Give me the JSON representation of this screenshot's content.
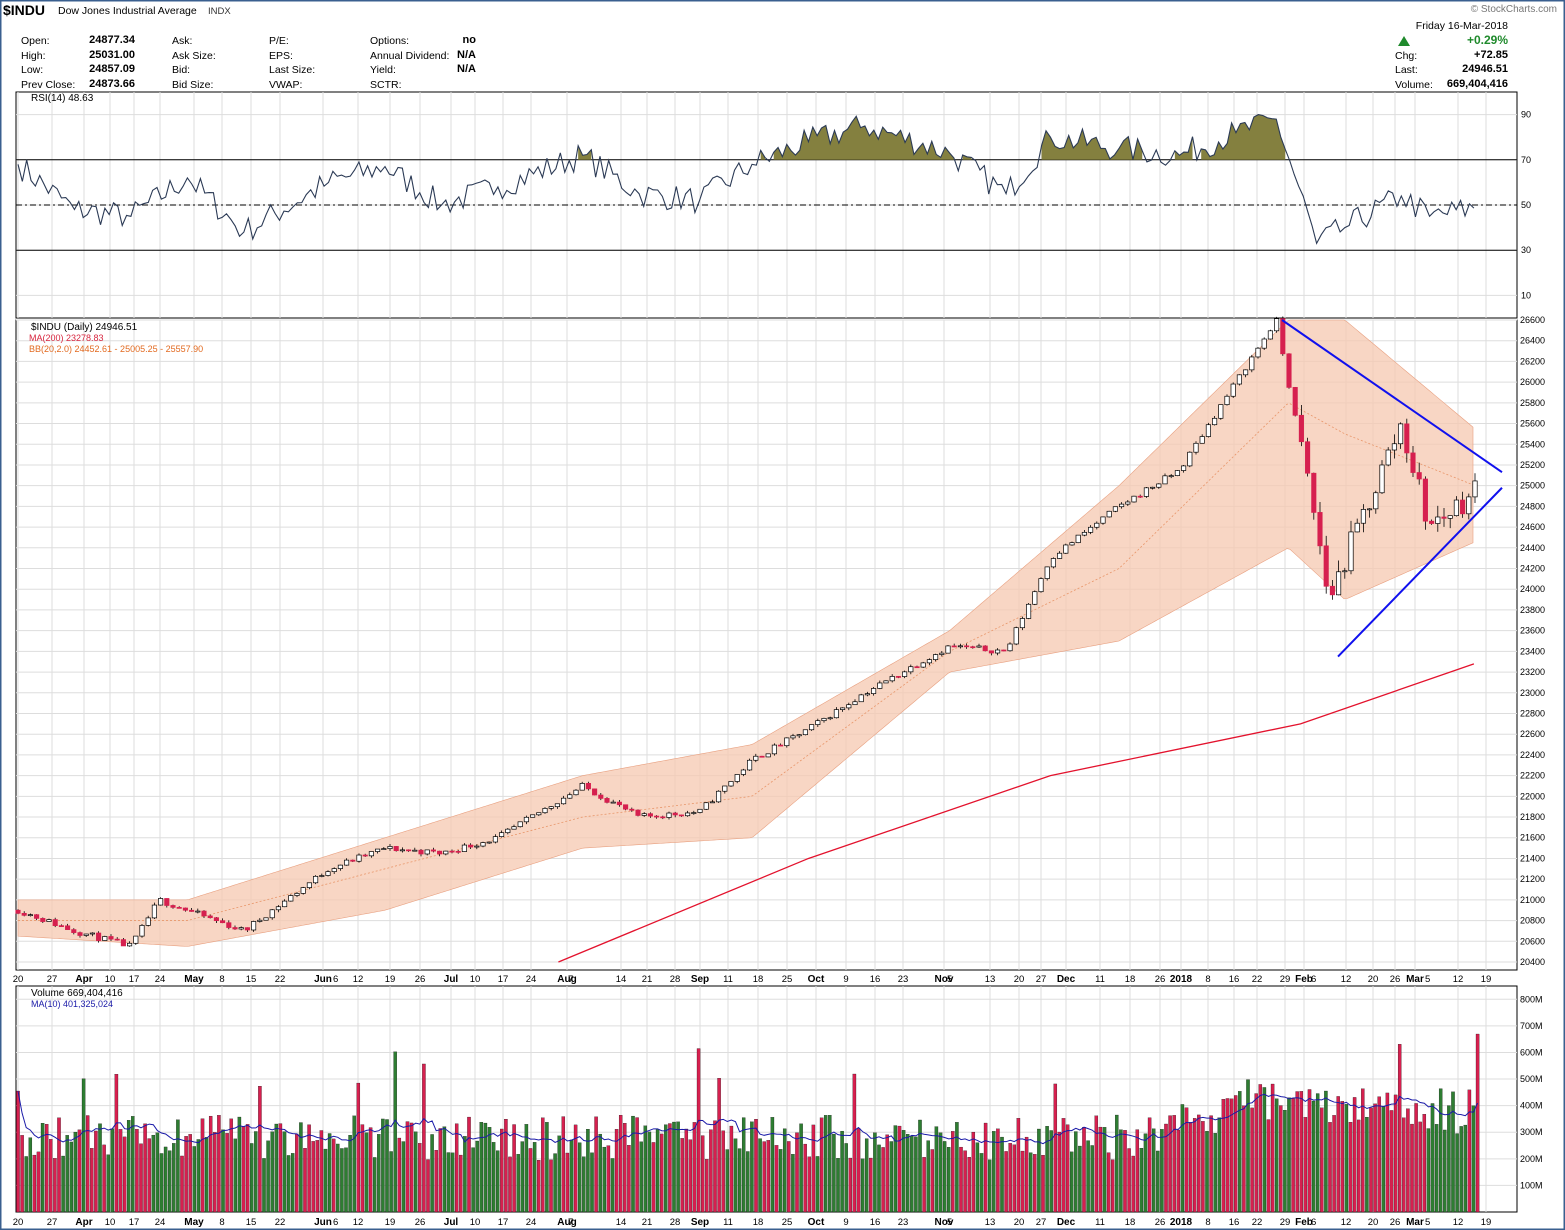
{
  "header": {
    "symbol": "$INDU",
    "name": "Dow Jones Industrial Average",
    "exchange": "INDX",
    "watermark": "© StockCharts.com"
  },
  "quote": {
    "open_label": "Open:",
    "open": "24877.34",
    "high_label": "High:",
    "high": "25031.00",
    "low_label": "Low:",
    "low": "24857.09",
    "prev_label": "Prev Close:",
    "prev": "24873.66",
    "ask_label": "Ask:",
    "ask_size_label": "Ask Size:",
    "bid_label": "Bid:",
    "bid_size_label": "Bid Size:",
    "pe_label": "P/E:",
    "eps_label": "EPS:",
    "last_size_label": "Last Size:",
    "vwap_label": "VWAP:",
    "options_label": "Options:",
    "options": "no",
    "div_label": "Annual Dividend:",
    "div": "N/A",
    "yield_label": "Yield:",
    "yield": "N/A",
    "sctr_label": "SCTR:",
    "date": "Friday  16-Mar-2018",
    "pct_change": "+0.29%",
    "chg_label": "Chg:",
    "chg": "+72.85",
    "last_label": "Last:",
    "last": "24946.51",
    "volume_label": "Volume:",
    "volume": "669,404,416"
  },
  "colors": {
    "up": "#2e7d32",
    "down": "#d6204f",
    "bb_fill": "#f5c8b0",
    "rsi_fill": "#84803f",
    "ma200": "#e3122d",
    "trend": "#1010ee",
    "ma10": "#1a1aa8",
    "grid": "#dddddd"
  },
  "chart_data": [
    {
      "type": "line",
      "title": "RSI(14) 48.63",
      "yticks": [
        90,
        70,
        50,
        30,
        10
      ],
      "ylim": [
        0,
        100
      ],
      "overbought": 70,
      "oversold": 30,
      "midline": 50,
      "x": [
        "2017-03-20",
        "2017-04-03",
        "2017-04-17",
        "2017-05-01",
        "2017-05-15",
        "2017-06-05",
        "2017-06-19",
        "2017-07-03",
        "2017-07-17",
        "2017-08-07",
        "2017-08-21",
        "2017-09-05",
        "2017-09-18",
        "2017-10-02",
        "2017-10-16",
        "2017-11-06",
        "2017-11-20",
        "2017-12-01",
        "2017-12-18",
        "2018-01-02",
        "2018-01-16",
        "2018-01-26",
        "2018-02-05",
        "2018-02-12",
        "2018-02-26",
        "2018-03-05",
        "2018-03-16"
      ],
      "values": [
        68,
        48,
        45,
        62,
        38,
        60,
        67,
        50,
        58,
        72,
        55,
        52,
        68,
        78,
        85,
        73,
        55,
        80,
        75,
        72,
        82,
        88,
        33,
        40,
        54,
        45,
        48.63
      ]
    },
    {
      "type": "line",
      "title": "$INDU (Daily) 24946.51",
      "ylim": [
        20400,
        26600
      ],
      "yticks": [
        26600,
        26400,
        26200,
        26000,
        25800,
        25600,
        25400,
        25200,
        25000,
        24800,
        24600,
        24400,
        24200,
        24000,
        23800,
        23600,
        23400,
        23200,
        23000,
        22800,
        22600,
        22400,
        22200,
        22000,
        21800,
        21600,
        21400,
        21200,
        21000,
        20800,
        20600,
        20400
      ],
      "x_tick_labels": [
        "20",
        "27",
        "Apr",
        "10",
        "17",
        "24",
        "May",
        "8",
        "15",
        "22",
        "Jun",
        "12",
        "19",
        "26",
        "Jul",
        "10",
        "17",
        "24",
        "Aug",
        "14",
        "21",
        "28",
        "Sep",
        "11",
        "18",
        "25",
        "Oct",
        "9",
        "16",
        "23",
        "Nov",
        "13",
        "20",
        "27",
        "Dec",
        "11",
        "18",
        "26",
        "2018",
        "8",
        "16",
        "22",
        "29",
        "Feb",
        "12",
        "20",
        "26",
        "Mar",
        "12",
        "19"
      ],
      "bold_x_labels": [
        "Apr",
        "May",
        "Jun",
        "Jul",
        "Aug",
        "Sep",
        "Oct",
        "Nov",
        "Dec",
        "2018",
        "Feb",
        "Mar"
      ],
      "extra_x_labels": [
        "6",
        "7",
        "5",
        "6",
        "5"
      ],
      "series": [
        {
          "name": "$INDU (Daily) 24946.51",
          "x": [
            "2017-03-20",
            "2017-04-03",
            "2017-04-17",
            "2017-04-24",
            "2017-05-15",
            "2017-06-05",
            "2017-06-19",
            "2017-07-03",
            "2017-07-17",
            "2017-08-07",
            "2017-08-21",
            "2017-09-05",
            "2017-09-18",
            "2017-10-02",
            "2017-10-16",
            "2017-11-06",
            "2017-11-20",
            "2017-12-01",
            "2017-12-18",
            "2018-01-02",
            "2018-01-16",
            "2018-01-26",
            "2018-02-05",
            "2018-02-08",
            "2018-02-26",
            "2018-03-05",
            "2018-03-16"
          ],
          "values": [
            20900,
            20700,
            20550,
            21000,
            20700,
            21300,
            21500,
            21450,
            21600,
            22100,
            21800,
            21850,
            22350,
            22650,
            23000,
            23450,
            23400,
            24300,
            24800,
            25150,
            26000,
            26600,
            24600,
            23900,
            25600,
            24600,
            24946.51
          ]
        },
        {
          "name": "MA(200) 23278.83",
          "x": [
            "2017-08-01",
            "2017-10-02",
            "2017-12-01",
            "2018-02-01",
            "2018-03-16"
          ],
          "values": [
            20400,
            21400,
            22200,
            22700,
            23278.83
          ]
        },
        {
          "name": "BB(20,2.0) 24452.61 - 25005.25 - 25557.90",
          "x": [
            "2017-03-20",
            "2017-05-01",
            "2017-06-19",
            "2017-08-07",
            "2017-09-18",
            "2017-11-06",
            "2017-12-18",
            "2018-01-29",
            "2018-02-12",
            "2018-03-16"
          ],
          "upper": [
            21000,
            21000,
            21600,
            22200,
            22500,
            23600,
            25000,
            26600,
            26600,
            25557.9
          ],
          "middle": [
            20800,
            20800,
            21300,
            21800,
            22000,
            23400,
            24200,
            25800,
            25500,
            25005.25
          ],
          "lower": [
            20650,
            20550,
            20900,
            21500,
            21600,
            23200,
            23500,
            24400,
            23900,
            24452.61
          ]
        }
      ]
    },
    {
      "type": "bar",
      "title": "Volume 669,404,416",
      "ylim": [
        0,
        850
      ],
      "yticks": [
        "800M",
        "700M",
        "600M",
        "500M",
        "400M",
        "300M",
        "200M",
        "100M"
      ],
      "series": [
        {
          "name": "Volume 669,404,416",
          "last_value": 669.4
        },
        {
          "name": "MA(10) 401,325,024",
          "last_value": 401.3
        }
      ]
    }
  ]
}
